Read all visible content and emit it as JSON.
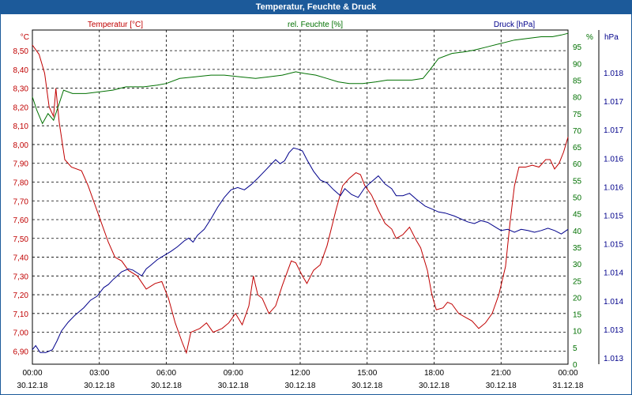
{
  "window": {
    "title": "Temperatur, Feuchte & Druck"
  },
  "colors": {
    "temperature": "#c00000",
    "humidity": "#007000",
    "pressure": "#00008b",
    "titlebar": "#1c5a9a"
  },
  "chart_data": {
    "type": "line",
    "title": "Temperatur, Feuchte & Druck",
    "grid": true,
    "x_ticks": [
      {
        "time": "00:00",
        "date": "30.12.18"
      },
      {
        "time": "03:00",
        "date": "30.12.18"
      },
      {
        "time": "06:00",
        "date": "30.12.18"
      },
      {
        "time": "09:00",
        "date": "30.12.18"
      },
      {
        "time": "12:00",
        "date": "30.12.18"
      },
      {
        "time": "15:00",
        "date": "30.12.18"
      },
      {
        "time": "18:00",
        "date": "30.12.18"
      },
      {
        "time": "21:00",
        "date": "30.12.18"
      },
      {
        "time": "00:00",
        "date": "31.12.18"
      }
    ],
    "x_unit": "hours",
    "xlim": [
      0,
      24
    ],
    "axes": {
      "left": {
        "label": "Temperatur [°C]",
        "unit": "°C",
        "ylim": [
          6.83,
          8.61
        ],
        "ticks": [
          "6,90",
          "7,00",
          "7,10",
          "7,20",
          "7,30",
          "7,40",
          "7,50",
          "7,60",
          "7,70",
          "7,80",
          "7,90",
          "8,00",
          "8,10",
          "8,20",
          "8,30",
          "8,40",
          "8,50"
        ]
      },
      "right1": {
        "label": "rel. Feuchte [%]",
        "unit": "%",
        "ylim": [
          0,
          100
        ],
        "ticks": [
          "0",
          "5",
          "10",
          "15",
          "20",
          "25",
          "30",
          "35",
          "40",
          "45",
          "50",
          "55",
          "60",
          "65",
          "70",
          "75",
          "80",
          "85",
          "90",
          "95"
        ]
      },
      "right2": {
        "label": "Druck [hPa]",
        "unit": "hPa",
        "ylim": [
          1012.88,
          1018.63
        ],
        "ticks": [
          "1.013",
          "1.013",
          "1.014",
          "1.014",
          "1.015",
          "1.015",
          "1.016",
          "1.016",
          "1.017",
          "1.017",
          "1.018"
        ]
      }
    },
    "series": [
      {
        "name": "Temperatur [°C]",
        "axis": "left",
        "color": "#c00000",
        "points": [
          [
            0,
            8.53
          ],
          [
            0.3,
            8.48
          ],
          [
            0.55,
            8.38
          ],
          [
            0.75,
            8.2
          ],
          [
            0.95,
            8.15
          ],
          [
            1.05,
            8.3
          ],
          [
            1.2,
            8.12
          ],
          [
            1.45,
            7.92
          ],
          [
            1.75,
            7.88
          ],
          [
            2.2,
            7.86
          ],
          [
            2.5,
            7.78
          ],
          [
            2.8,
            7.68
          ],
          [
            3.1,
            7.58
          ],
          [
            3.4,
            7.48
          ],
          [
            3.7,
            7.4
          ],
          [
            4.0,
            7.38
          ],
          [
            4.3,
            7.33
          ],
          [
            4.7,
            7.3
          ],
          [
            5.1,
            7.23
          ],
          [
            5.5,
            7.26
          ],
          [
            5.8,
            7.27
          ],
          [
            6.1,
            7.18
          ],
          [
            6.4,
            7.05
          ],
          [
            6.7,
            6.95
          ],
          [
            6.9,
            6.89
          ],
          [
            7.1,
            7.0
          ],
          [
            7.5,
            7.02
          ],
          [
            7.8,
            7.05
          ],
          [
            8.1,
            7.0
          ],
          [
            8.5,
            7.02
          ],
          [
            8.8,
            7.05
          ],
          [
            9.1,
            7.1
          ],
          [
            9.4,
            7.04
          ],
          [
            9.7,
            7.14
          ],
          [
            9.9,
            7.3
          ],
          [
            10.1,
            7.2
          ],
          [
            10.3,
            7.18
          ],
          [
            10.6,
            7.1
          ],
          [
            10.9,
            7.14
          ],
          [
            11.2,
            7.25
          ],
          [
            11.6,
            7.38
          ],
          [
            11.8,
            7.37
          ],
          [
            12.1,
            7.3
          ],
          [
            12.3,
            7.26
          ],
          [
            12.6,
            7.33
          ],
          [
            12.9,
            7.36
          ],
          [
            13.2,
            7.46
          ],
          [
            13.6,
            7.65
          ],
          [
            13.9,
            7.78
          ],
          [
            14.2,
            7.82
          ],
          [
            14.5,
            7.85
          ],
          [
            14.7,
            7.84
          ],
          [
            14.9,
            7.78
          ],
          [
            15.2,
            7.73
          ],
          [
            15.5,
            7.65
          ],
          [
            15.8,
            7.58
          ],
          [
            16.1,
            7.55
          ],
          [
            16.3,
            7.5
          ],
          [
            16.6,
            7.52
          ],
          [
            16.9,
            7.56
          ],
          [
            17.2,
            7.49
          ],
          [
            17.4,
            7.45
          ],
          [
            17.7,
            7.33
          ],
          [
            17.9,
            7.2
          ],
          [
            18.1,
            7.12
          ],
          [
            18.4,
            7.13
          ],
          [
            18.6,
            7.16
          ],
          [
            18.8,
            7.15
          ],
          [
            19.1,
            7.1
          ],
          [
            19.4,
            7.08
          ],
          [
            19.7,
            7.06
          ],
          [
            20.0,
            7.02
          ],
          [
            20.3,
            7.05
          ],
          [
            20.6,
            7.1
          ],
          [
            20.9,
            7.2
          ],
          [
            21.2,
            7.35
          ],
          [
            21.4,
            7.58
          ],
          [
            21.6,
            7.78
          ],
          [
            21.8,
            7.88
          ],
          [
            22.1,
            7.88
          ],
          [
            22.4,
            7.89
          ],
          [
            22.7,
            7.88
          ],
          [
            23.0,
            7.92
          ],
          [
            23.2,
            7.92
          ],
          [
            23.4,
            7.87
          ],
          [
            23.6,
            7.9
          ],
          [
            23.8,
            7.96
          ],
          [
            24.0,
            8.04
          ]
        ]
      },
      {
        "name": "rel. Feuchte [%]",
        "axis": "right1",
        "color": "#007000",
        "points": [
          [
            0,
            80
          ],
          [
            0.2,
            76
          ],
          [
            0.45,
            72
          ],
          [
            0.7,
            75
          ],
          [
            0.95,
            73
          ],
          [
            1.2,
            78
          ],
          [
            1.4,
            82
          ],
          [
            1.8,
            81
          ],
          [
            2.4,
            81
          ],
          [
            3.0,
            81.5
          ],
          [
            3.6,
            82
          ],
          [
            4.2,
            83
          ],
          [
            5.0,
            83
          ],
          [
            5.6,
            83.5
          ],
          [
            6.0,
            84
          ],
          [
            6.6,
            85.5
          ],
          [
            7.3,
            86
          ],
          [
            8.0,
            86.5
          ],
          [
            8.6,
            86.5
          ],
          [
            9.3,
            86
          ],
          [
            10.0,
            85.5
          ],
          [
            10.6,
            86
          ],
          [
            11.2,
            86.5
          ],
          [
            11.8,
            87.5
          ],
          [
            12.2,
            87
          ],
          [
            12.7,
            86.5
          ],
          [
            13.2,
            85.5
          ],
          [
            13.7,
            84.5
          ],
          [
            14.2,
            84
          ],
          [
            14.8,
            84
          ],
          [
            15.4,
            84.5
          ],
          [
            15.9,
            85
          ],
          [
            16.4,
            85
          ],
          [
            17.0,
            85
          ],
          [
            17.5,
            85.5
          ],
          [
            17.8,
            88
          ],
          [
            18.2,
            91.5
          ],
          [
            18.8,
            93
          ],
          [
            19.4,
            93.5
          ],
          [
            19.8,
            94
          ],
          [
            20.4,
            95
          ],
          [
            21.0,
            96
          ],
          [
            21.6,
            97
          ],
          [
            22.2,
            97.5
          ],
          [
            22.8,
            98
          ],
          [
            23.3,
            98
          ],
          [
            23.7,
            98.5
          ],
          [
            24.0,
            99
          ]
        ]
      },
      {
        "name": "Druck [hPa]",
        "axis": "right2",
        "color": "#00008b",
        "points": [
          [
            0,
            1013.13
          ],
          [
            0.15,
            1013.2
          ],
          [
            0.35,
            1013.08
          ],
          [
            0.6,
            1013.08
          ],
          [
            0.9,
            1013.13
          ],
          [
            1.1,
            1013.28
          ],
          [
            1.3,
            1013.45
          ],
          [
            1.6,
            1013.6
          ],
          [
            1.9,
            1013.72
          ],
          [
            2.3,
            1013.85
          ],
          [
            2.6,
            1013.98
          ],
          [
            2.9,
            1014.05
          ],
          [
            3.2,
            1014.2
          ],
          [
            3.4,
            1014.25
          ],
          [
            3.6,
            1014.33
          ],
          [
            3.8,
            1014.4
          ],
          [
            4.0,
            1014.47
          ],
          [
            4.3,
            1014.52
          ],
          [
            4.5,
            1014.5
          ],
          [
            4.7,
            1014.45
          ],
          [
            4.9,
            1014.4
          ],
          [
            5.1,
            1014.52
          ],
          [
            5.3,
            1014.58
          ],
          [
            5.6,
            1014.68
          ],
          [
            5.9,
            1014.75
          ],
          [
            6.2,
            1014.82
          ],
          [
            6.5,
            1014.9
          ],
          [
            6.8,
            1015.0
          ],
          [
            7.0,
            1015.05
          ],
          [
            7.2,
            1014.98
          ],
          [
            7.4,
            1015.1
          ],
          [
            7.7,
            1015.2
          ],
          [
            8.0,
            1015.38
          ],
          [
            8.3,
            1015.58
          ],
          [
            8.6,
            1015.75
          ],
          [
            8.9,
            1015.88
          ],
          [
            9.2,
            1015.92
          ],
          [
            9.5,
            1015.88
          ],
          [
            9.8,
            1015.97
          ],
          [
            10.1,
            1016.08
          ],
          [
            10.4,
            1016.2
          ],
          [
            10.7,
            1016.32
          ],
          [
            10.9,
            1016.4
          ],
          [
            11.1,
            1016.33
          ],
          [
            11.3,
            1016.38
          ],
          [
            11.5,
            1016.52
          ],
          [
            11.7,
            1016.6
          ],
          [
            11.9,
            1016.58
          ],
          [
            12.1,
            1016.55
          ],
          [
            12.3,
            1016.4
          ],
          [
            12.6,
            1016.2
          ],
          [
            12.9,
            1016.05
          ],
          [
            13.2,
            1016.0
          ],
          [
            13.5,
            1015.88
          ],
          [
            13.8,
            1015.78
          ],
          [
            14.0,
            1015.9
          ],
          [
            14.3,
            1015.8
          ],
          [
            14.6,
            1015.75
          ],
          [
            14.9,
            1015.92
          ],
          [
            15.2,
            1016.02
          ],
          [
            15.5,
            1016.12
          ],
          [
            15.8,
            1015.98
          ],
          [
            16.1,
            1015.9
          ],
          [
            16.3,
            1015.78
          ],
          [
            16.6,
            1015.78
          ],
          [
            16.9,
            1015.82
          ],
          [
            17.2,
            1015.72
          ],
          [
            17.6,
            1015.6
          ],
          [
            17.9,
            1015.55
          ],
          [
            18.2,
            1015.5
          ],
          [
            18.5,
            1015.48
          ],
          [
            18.9,
            1015.43
          ],
          [
            19.2,
            1015.38
          ],
          [
            19.5,
            1015.33
          ],
          [
            19.8,
            1015.3
          ],
          [
            20.1,
            1015.35
          ],
          [
            20.4,
            1015.32
          ],
          [
            20.7,
            1015.25
          ],
          [
            21.0,
            1015.18
          ],
          [
            21.3,
            1015.2
          ],
          [
            21.6,
            1015.15
          ],
          [
            21.9,
            1015.2
          ],
          [
            22.2,
            1015.18
          ],
          [
            22.5,
            1015.15
          ],
          [
            22.8,
            1015.18
          ],
          [
            23.1,
            1015.22
          ],
          [
            23.4,
            1015.18
          ],
          [
            23.7,
            1015.12
          ],
          [
            24.0,
            1015.2
          ]
        ]
      }
    ]
  }
}
